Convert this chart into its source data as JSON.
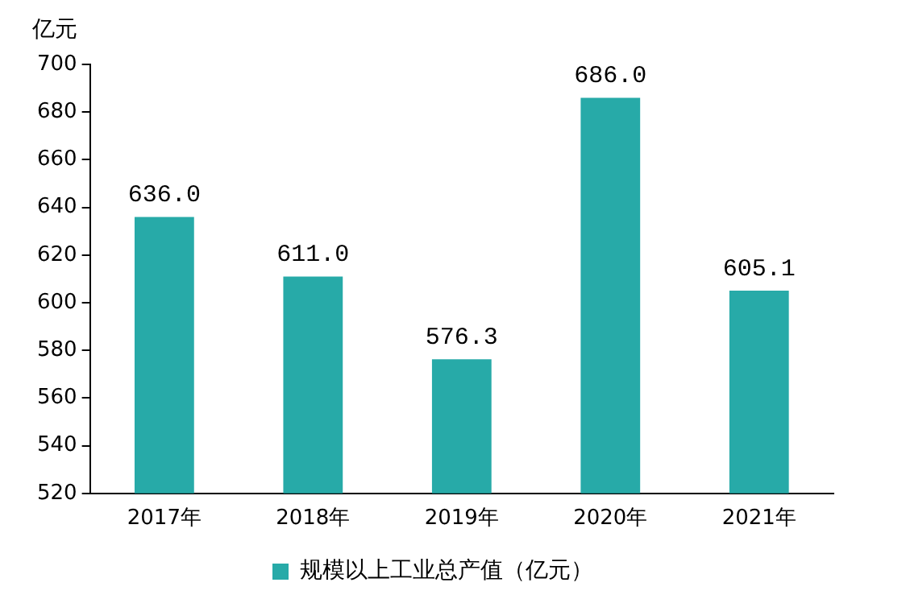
{
  "chart_data": {
    "type": "bar",
    "ylabel": "亿元",
    "categories": [
      "2017年",
      "2018年",
      "2019年",
      "2020年",
      "2021年"
    ],
    "series": [
      {
        "name": "规模以上工业总产值（亿元）",
        "color": "#27aaa8",
        "values": [
          636.0,
          611.0,
          576.3,
          686.0,
          605.1
        ],
        "value_labels": [
          "636.0",
          "611.0",
          "576.3",
          "686.0",
          "605.1"
        ]
      }
    ],
    "ylim": [
      520,
      700
    ],
    "yticks": [
      520,
      540,
      560,
      580,
      600,
      620,
      640,
      660,
      680,
      700
    ],
    "grid": false,
    "legend": "bottom"
  }
}
